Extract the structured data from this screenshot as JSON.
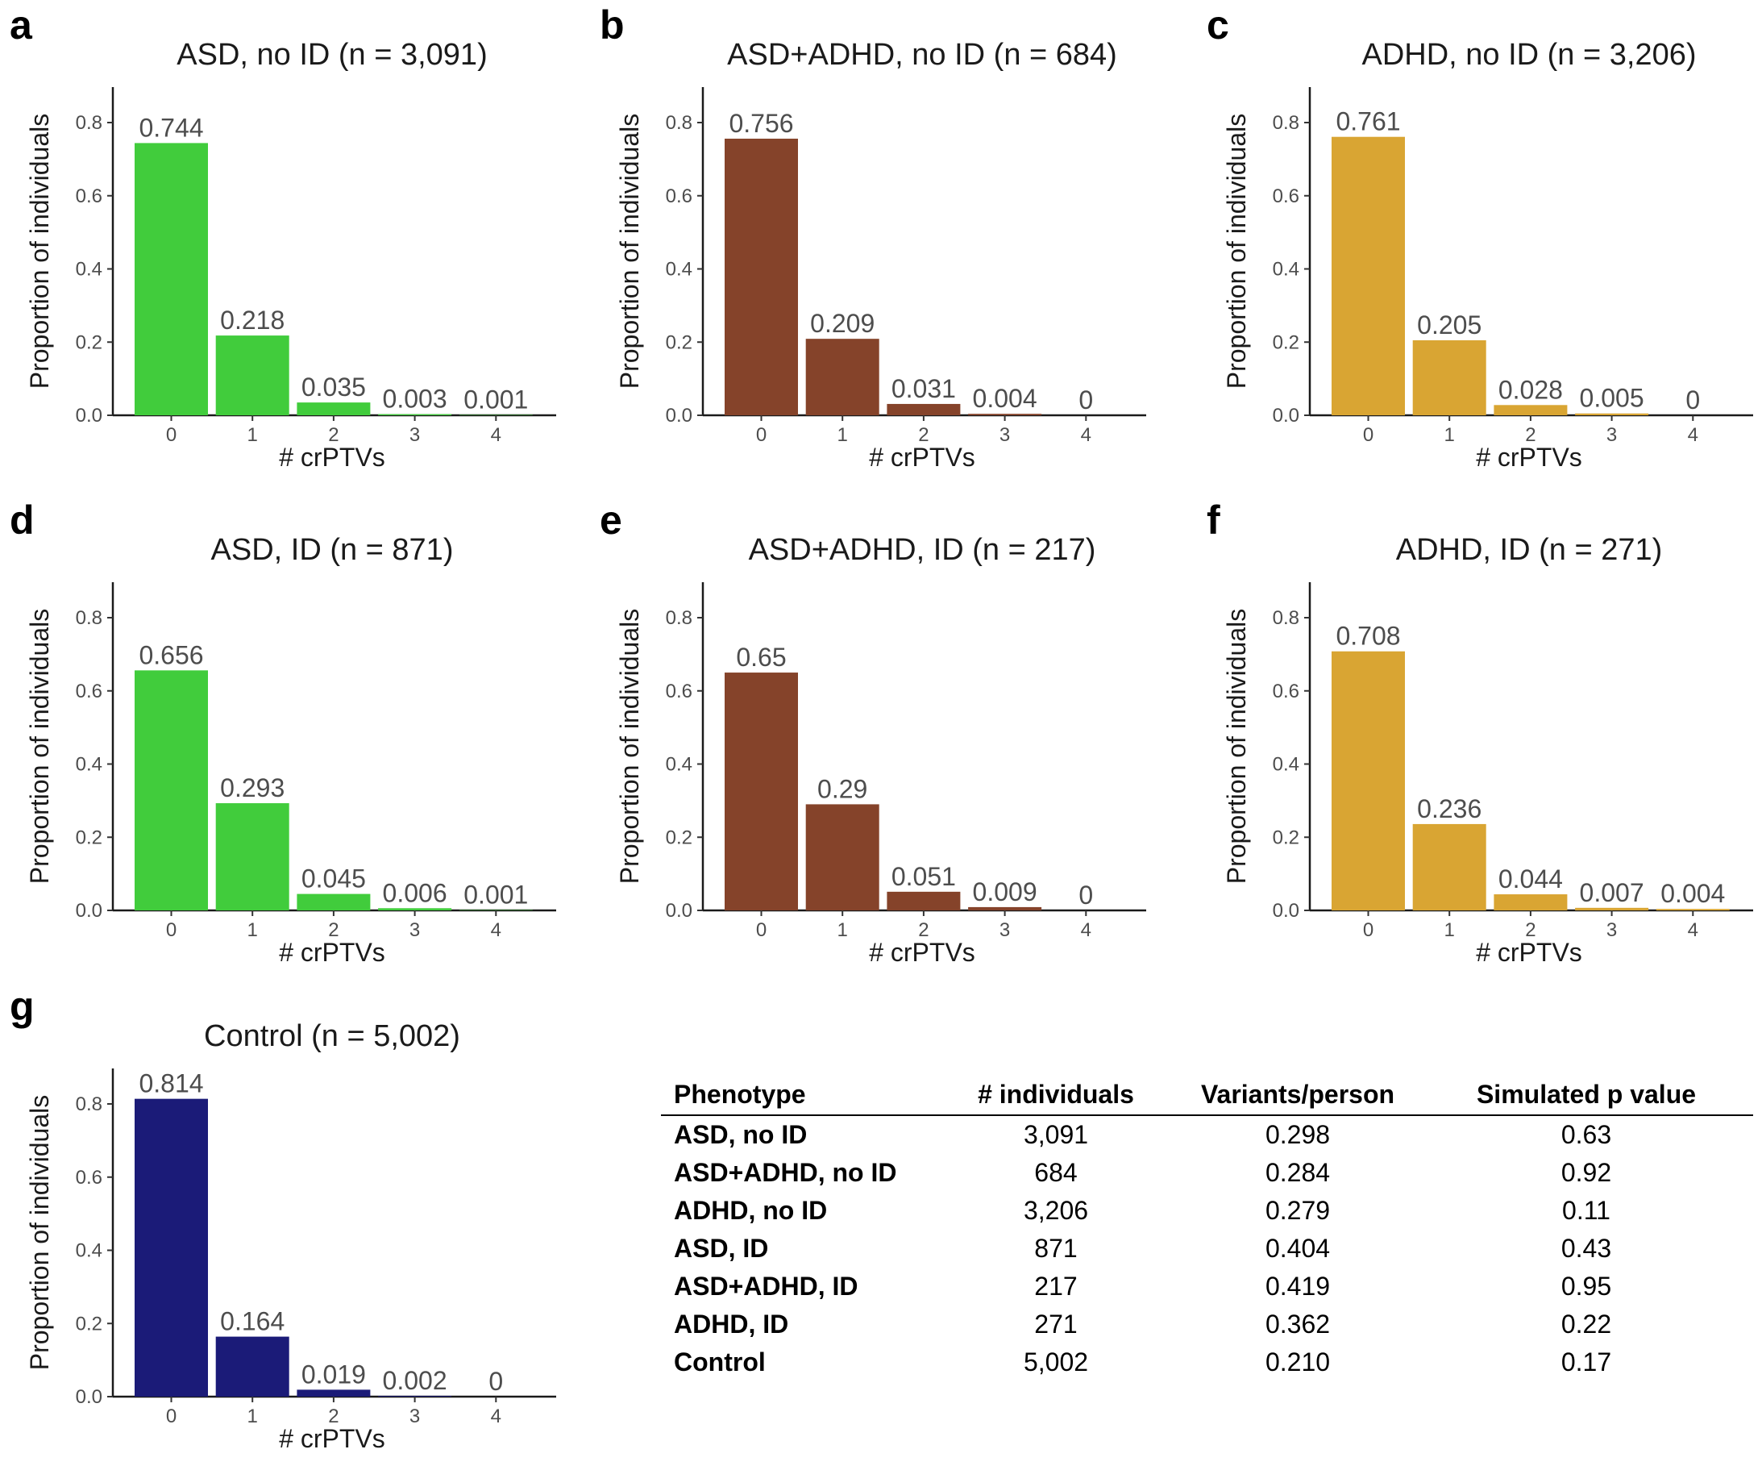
{
  "chart_data": [
    {
      "panel": "a",
      "type": "bar",
      "title": "ASD, no ID (n = 3,091)",
      "color": "#41cc3c",
      "categories": [
        "0",
        "1",
        "2",
        "3",
        "4"
      ],
      "values": [
        0.744,
        0.218,
        0.035,
        0.003,
        0.001
      ],
      "labels": [
        "0.744",
        "0.218",
        "0.035",
        "0.003",
        "0.001"
      ],
      "xlabel": "# crPTVs",
      "ylabel": "Proportion of individuals",
      "yticks": [
        "0.0",
        "0.2",
        "0.4",
        "0.6",
        "0.8"
      ],
      "ylim": [
        0,
        0.9
      ]
    },
    {
      "panel": "b",
      "type": "bar",
      "title": "ASD+ADHD, no ID (n = 684)",
      "color": "#85432a",
      "categories": [
        "0",
        "1",
        "2",
        "3",
        "4"
      ],
      "values": [
        0.756,
        0.209,
        0.031,
        0.004,
        0
      ],
      "labels": [
        "0.756",
        "0.209",
        "0.031",
        "0.004",
        "0"
      ],
      "xlabel": "# crPTVs",
      "ylabel": "Proportion of individuals",
      "yticks": [
        "0.0",
        "0.2",
        "0.4",
        "0.6",
        "0.8"
      ],
      "ylim": [
        0,
        0.9
      ]
    },
    {
      "panel": "c",
      "type": "bar",
      "title": "ADHD, no ID (n = 3,206)",
      "color": "#d9a533",
      "categories": [
        "0",
        "1",
        "2",
        "3",
        "4"
      ],
      "values": [
        0.761,
        0.205,
        0.028,
        0.005,
        0
      ],
      "labels": [
        "0.761",
        "0.205",
        "0.028",
        "0.005",
        "0"
      ],
      "xlabel": "# crPTVs",
      "ylabel": "Proportion of individuals",
      "yticks": [
        "0.0",
        "0.2",
        "0.4",
        "0.6",
        "0.8"
      ],
      "ylim": [
        0,
        0.9
      ]
    },
    {
      "panel": "d",
      "type": "bar",
      "title": "ASD, ID (n = 871)",
      "color": "#41cc3c",
      "categories": [
        "0",
        "1",
        "2",
        "3",
        "4"
      ],
      "values": [
        0.656,
        0.293,
        0.045,
        0.006,
        0.001
      ],
      "labels": [
        "0.656",
        "0.293",
        "0.045",
        "0.006",
        "0.001"
      ],
      "xlabel": "# crPTVs",
      "ylabel": "Proportion of individuals",
      "yticks": [
        "0.0",
        "0.2",
        "0.4",
        "0.6",
        "0.8"
      ],
      "ylim": [
        0,
        0.9
      ]
    },
    {
      "panel": "e",
      "type": "bar",
      "title": "ASD+ADHD, ID (n = 217)",
      "color": "#85432a",
      "categories": [
        "0",
        "1",
        "2",
        "3",
        "4"
      ],
      "values": [
        0.65,
        0.29,
        0.051,
        0.009,
        0
      ],
      "labels": [
        "0.65",
        "0.29",
        "0.051",
        "0.009",
        "0"
      ],
      "xlabel": "# crPTVs",
      "ylabel": "Proportion of individuals",
      "yticks": [
        "0.0",
        "0.2",
        "0.4",
        "0.6",
        "0.8"
      ],
      "ylim": [
        0,
        0.9
      ]
    },
    {
      "panel": "f",
      "type": "bar",
      "title": "ADHD, ID (n = 271)",
      "color": "#d9a533",
      "categories": [
        "0",
        "1",
        "2",
        "3",
        "4"
      ],
      "values": [
        0.708,
        0.236,
        0.044,
        0.007,
        0.004
      ],
      "labels": [
        "0.708",
        "0.236",
        "0.044",
        "0.007",
        "0.004"
      ],
      "xlabel": "# crPTVs",
      "ylabel": "Proportion of individuals",
      "yticks": [
        "0.0",
        "0.2",
        "0.4",
        "0.6",
        "0.8"
      ],
      "ylim": [
        0,
        0.9
      ]
    },
    {
      "panel": "g",
      "type": "bar",
      "title": "Control (n = 5,002)",
      "color": "#1b1b78",
      "categories": [
        "0",
        "1",
        "2",
        "3",
        "4"
      ],
      "values": [
        0.814,
        0.164,
        0.019,
        0.002,
        0
      ],
      "labels": [
        "0.814",
        "0.164",
        "0.019",
        "0.002",
        "0"
      ],
      "xlabel": "# crPTVs",
      "ylabel": "Proportion of individuals",
      "yticks": [
        "0.0",
        "0.2",
        "0.4",
        "0.6",
        "0.8"
      ],
      "ylim": [
        0,
        0.9
      ]
    }
  ],
  "table": {
    "type": "table",
    "headers": [
      "Phenotype",
      "# individuals",
      "Variants/person",
      "Simulated p value"
    ],
    "rows": [
      [
        "ASD, no ID",
        "3,091",
        "0.298",
        "0.63"
      ],
      [
        "ASD+ADHD, no ID",
        "684",
        "0.284",
        "0.92"
      ],
      [
        "ADHD, no ID",
        "3,206",
        "0.279",
        "0.11"
      ],
      [
        "ASD, ID",
        "871",
        "0.404",
        "0.43"
      ],
      [
        "ASD+ADHD, ID",
        "217",
        "0.419",
        "0.95"
      ],
      [
        "ADHD, ID",
        "271",
        "0.362",
        "0.22"
      ],
      [
        "Control",
        "5,002",
        "0.210",
        "0.17"
      ]
    ]
  }
}
